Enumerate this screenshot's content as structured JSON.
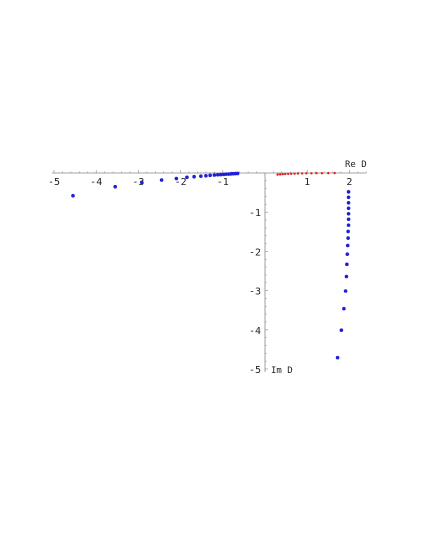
{
  "chart_data": {
    "type": "scatter",
    "xlabel": "Re D",
    "ylabel": "Im D",
    "xlim": [
      -5,
      2.4
    ],
    "ylim": [
      -5,
      0
    ],
    "x_ticks": [
      -5,
      -4,
      -3,
      -2,
      -1,
      1,
      2
    ],
    "x_tick_labels": [
      "-5",
      "-4",
      "-3",
      "-2",
      "-1",
      "1",
      "2"
    ],
    "y_ticks": [
      -1,
      -2,
      -3,
      -4,
      -5
    ],
    "y_tick_labels": [
      "-1",
      "-2",
      "-3",
      "-4",
      "-5"
    ],
    "grid": false,
    "series": [
      {
        "color": "#1f1fd6",
        "points": [
          [
            -4.55,
            -0.58
          ],
          [
            -3.55,
            -0.35
          ],
          [
            -2.92,
            -0.24
          ],
          [
            -2.45,
            -0.18
          ],
          [
            -2.1,
            -0.14
          ],
          [
            -1.85,
            -0.11
          ],
          [
            -1.68,
            -0.095
          ],
          [
            -1.52,
            -0.08
          ],
          [
            -1.4,
            -0.07
          ],
          [
            -1.3,
            -0.06
          ],
          [
            -1.2,
            -0.052
          ],
          [
            -1.12,
            -0.045
          ],
          [
            -1.05,
            -0.04
          ],
          [
            -0.98,
            -0.035
          ],
          [
            -0.92,
            -0.03
          ],
          [
            -0.86,
            -0.026
          ],
          [
            -0.8,
            -0.022
          ],
          [
            -0.75,
            -0.018
          ],
          [
            -0.7,
            -0.015
          ],
          [
            -0.65,
            -0.012
          ]
        ]
      },
      {
        "color": "#1f1fd6",
        "points": [
          [
            1.98,
            -0.48
          ],
          [
            1.98,
            -0.62
          ],
          [
            1.98,
            -0.76
          ],
          [
            1.98,
            -0.9
          ],
          [
            1.98,
            -1.04
          ],
          [
            1.98,
            -1.18
          ],
          [
            1.98,
            -1.33
          ],
          [
            1.97,
            -1.49
          ],
          [
            1.97,
            -1.66
          ],
          [
            1.96,
            -1.85
          ],
          [
            1.95,
            -2.07
          ],
          [
            1.94,
            -2.33
          ],
          [
            1.93,
            -2.64
          ],
          [
            1.91,
            -3.01
          ],
          [
            1.87,
            -3.46
          ],
          [
            1.81,
            -4.01
          ],
          [
            1.72,
            -4.71
          ]
        ]
      },
      {
        "color": "#e02020",
        "points": [
          [
            0.3,
            -0.04
          ],
          [
            0.36,
            -0.035
          ],
          [
            0.42,
            -0.03
          ],
          [
            0.48,
            -0.027
          ],
          [
            0.55,
            -0.023
          ],
          [
            0.62,
            -0.02
          ],
          [
            0.7,
            -0.017
          ],
          [
            0.78,
            -0.014
          ],
          [
            0.88,
            -0.011
          ],
          [
            0.98,
            -0.009
          ],
          [
            1.1,
            -0.007
          ],
          [
            1.22,
            -0.005
          ],
          [
            1.35,
            -0.004
          ],
          [
            1.5,
            -0.003
          ],
          [
            1.65,
            -0.002
          ]
        ]
      }
    ]
  }
}
